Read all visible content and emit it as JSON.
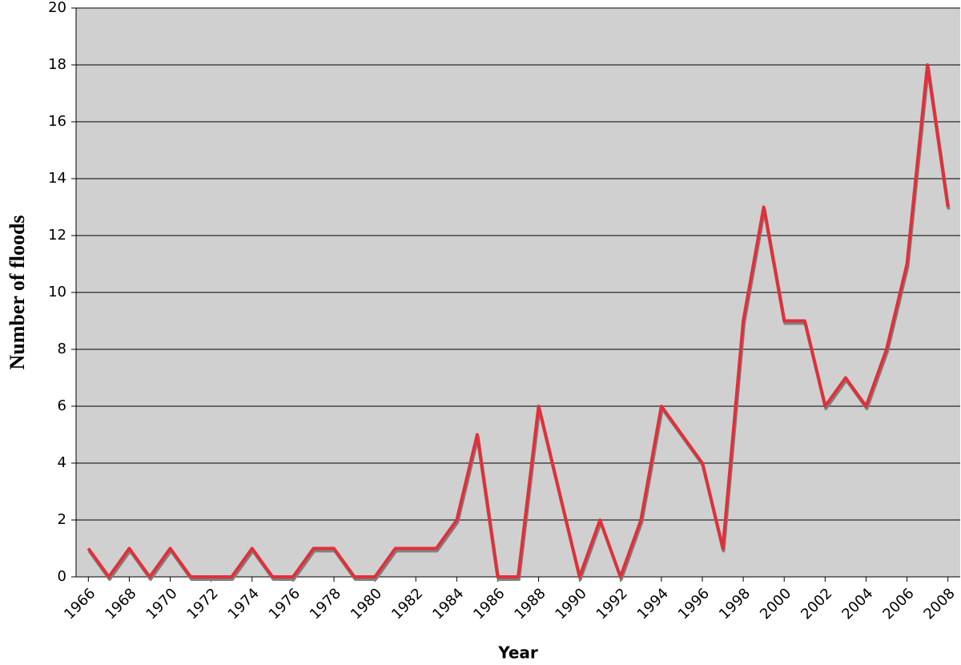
{
  "chart_data": {
    "type": "line",
    "x_label": "Year",
    "y_label": "Number of floods",
    "x": [
      1966,
      1967,
      1968,
      1969,
      1970,
      1971,
      1972,
      1973,
      1974,
      1975,
      1976,
      1977,
      1978,
      1979,
      1980,
      1981,
      1982,
      1983,
      1984,
      1985,
      1986,
      1987,
      1988,
      1989,
      1990,
      1991,
      1992,
      1993,
      1994,
      1995,
      1996,
      1997,
      1998,
      1999,
      2000,
      2001,
      2002,
      2003,
      2004,
      2005,
      2006,
      2007,
      2008
    ],
    "values": [
      1,
      0,
      1,
      0,
      1,
      0,
      0,
      0,
      1,
      0,
      0,
      1,
      1,
      0,
      0,
      1,
      1,
      1,
      2,
      5,
      0,
      0,
      6,
      3,
      0,
      2,
      0,
      2,
      6,
      5,
      4,
      1,
      9,
      13,
      9,
      9,
      6,
      7,
      6,
      8,
      11,
      18,
      13
    ],
    "color": "#e0303a",
    "shadow_color": "#808080",
    "background": "#d0d0d0",
    "xlim": [
      1965.4,
      2008.6
    ],
    "xticks": [
      1966,
      1968,
      1970,
      1972,
      1974,
      1976,
      1978,
      1980,
      1982,
      1984,
      1986,
      1988,
      1990,
      1992,
      1994,
      1996,
      1998,
      2000,
      2002,
      2004,
      2006,
      2008
    ],
    "ylim": [
      0,
      20
    ],
    "yticks": [
      0,
      2,
      4,
      6,
      8,
      10,
      12,
      14,
      16,
      18,
      20
    ],
    "grid": true
  }
}
